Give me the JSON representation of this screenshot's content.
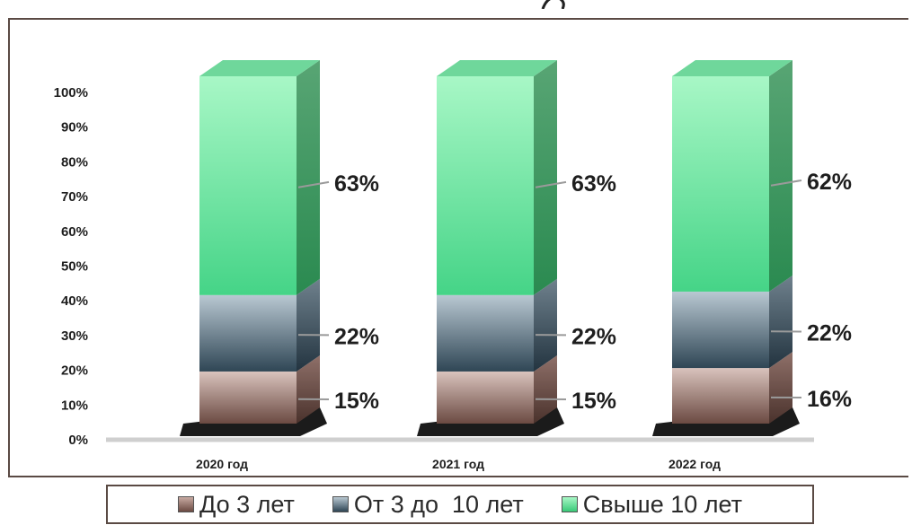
{
  "chart_data": {
    "type": "bar",
    "stacked": true,
    "three_d": true,
    "categories": [
      "2020 год",
      "2021 год",
      "2022 год"
    ],
    "series": [
      {
        "name": "До 3 лет",
        "values": [
          15,
          15,
          16
        ],
        "labels": [
          "15%",
          "15%",
          "16%"
        ],
        "color": "#8a6258"
      },
      {
        "name": "От 3 до  10 лет",
        "values": [
          22,
          22,
          22
        ],
        "labels": [
          "22%",
          "22%",
          "22%"
        ],
        "color": "#3d5666"
      },
      {
        "name": "Свыше 10 лет",
        "values": [
          63,
          63,
          62
        ],
        "labels": [
          "63%",
          "63%",
          "62%"
        ],
        "color": "#3fcf7e"
      }
    ],
    "y_ticks": [
      "0%",
      "10%",
      "20%",
      "30%",
      "40%",
      "50%",
      "60%",
      "70%",
      "80%",
      "90%",
      "100%"
    ],
    "ylim": [
      0,
      100
    ],
    "grid": false,
    "legend_position": "bottom"
  }
}
